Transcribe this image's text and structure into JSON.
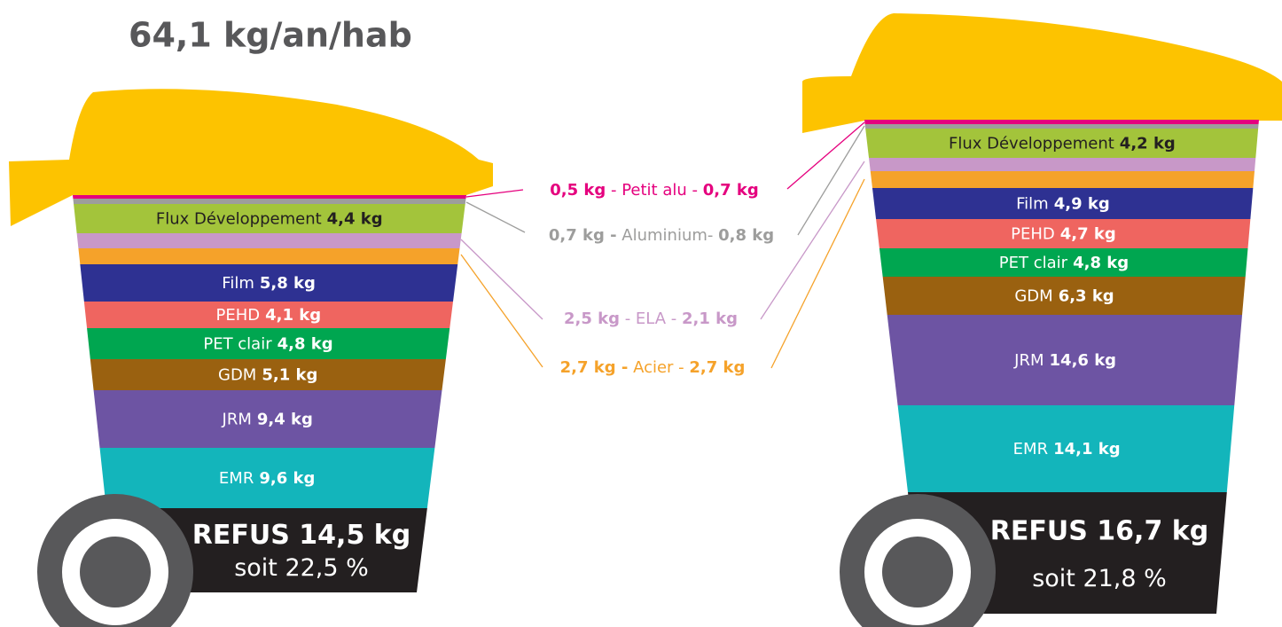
{
  "title": "64,1 kg/an/hab",
  "bins": [
    {
      "layers": [
        {
          "color": "#e5007e"
        },
        {
          "color": "#9d9d9c"
        },
        {
          "color": "#a3c43b",
          "text_color": "#231f20",
          "name": "Flux Développement",
          "amount": "4,4 kg"
        },
        {
          "color": "#c898c8"
        },
        {
          "color": "#f5a22a"
        },
        {
          "color": "#2e3192",
          "text_color": "#ffffff",
          "name": "Film",
          "amount": "5,8 kg"
        },
        {
          "color": "#ef6560",
          "text_color": "#ffffff",
          "name": "PEHD",
          "amount": "4,1 kg"
        },
        {
          "color": "#00a650",
          "text_color": "#ffffff",
          "name": "PET clair",
          "amount": "4,8 kg"
        },
        {
          "color": "#9a6110",
          "text_color": "#ffffff",
          "name": "GDM",
          "amount": "5,1 kg"
        },
        {
          "color": "#6d54a3",
          "text_color": "#ffffff",
          "name": "JRM",
          "amount": "9,4 kg"
        },
        {
          "color": "#13b5bb",
          "text_color": "#ffffff",
          "name": "EMR",
          "amount": "9,6 kg"
        }
      ],
      "refus": {
        "color": "#231f20",
        "label": "REFUS 14,5 kg",
        "share": "soit 22,5 %"
      }
    },
    {
      "layers": [
        {
          "color": "#e5007e"
        },
        {
          "color": "#9d9d9c"
        },
        {
          "color": "#a3c43b",
          "text_color": "#231f20",
          "name": "Flux Développement",
          "amount": "4,2 kg"
        },
        {
          "color": "#c898c8"
        },
        {
          "color": "#f5a22a"
        },
        {
          "color": "#2e3192",
          "text_color": "#ffffff",
          "name": "Film",
          "amount": "4,9 kg"
        },
        {
          "color": "#ef6560",
          "text_color": "#ffffff",
          "name": "PEHD",
          "amount": "4,7 kg"
        },
        {
          "color": "#00a650",
          "text_color": "#ffffff",
          "name": "PET clair",
          "amount": "4,8 kg"
        },
        {
          "color": "#9a6110",
          "text_color": "#ffffff",
          "name": "GDM",
          "amount": "6,3 kg"
        },
        {
          "color": "#6d54a3",
          "text_color": "#ffffff",
          "name": "JRM",
          "amount": "14,6 kg"
        },
        {
          "color": "#13b5bb",
          "text_color": "#ffffff",
          "name": "EMR",
          "amount": "14,1 kg"
        }
      ],
      "refus": {
        "color": "#231f20",
        "label": "REFUS 16,7 kg",
        "share": "soit 21,8 %"
      }
    }
  ],
  "legend": [
    {
      "color": "#e5007e",
      "left": "0,5 kg",
      "middle": " - Petit alu - ",
      "right": "0,7 kg"
    },
    {
      "color": "#9d9d9c",
      "left": "0,7 kg -",
      "middle": " Aluminium- ",
      "right": "0,8 kg"
    },
    {
      "color": "#c898c8",
      "left": "2,5 kg",
      "middle": " - ELA - ",
      "right": "2,1 kg"
    },
    {
      "color": "#f5a22a",
      "left": "2,7 kg -",
      "middle": " Acier - ",
      "right": "2,7 kg"
    }
  ]
}
